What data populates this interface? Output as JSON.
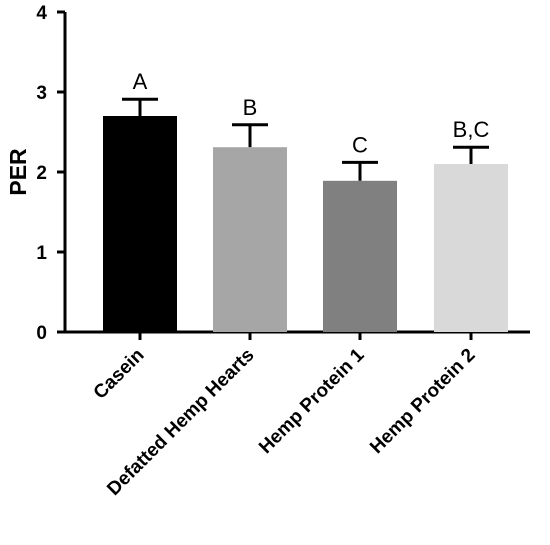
{
  "chart_data": {
    "type": "bar",
    "title": "",
    "xlabel": "",
    "ylabel": "PER",
    "ylim": [
      0,
      4
    ],
    "yticks": [
      0,
      1,
      2,
      3,
      4
    ],
    "grid": false,
    "legend": "none",
    "categories": [
      "Casein",
      "Defatted Hemp Hearts",
      "Hemp Protein 1",
      "Hemp Protein 2"
    ],
    "values": [
      2.7,
      2.31,
      1.89,
      2.1
    ],
    "error_upper": [
      2.91,
      2.59,
      2.12,
      2.31
    ],
    "significance": [
      "A",
      "B",
      "C",
      "B,C"
    ],
    "colors": [
      "#000000",
      "#a6a6a6",
      "#808080",
      "#d9d9d9"
    ]
  }
}
